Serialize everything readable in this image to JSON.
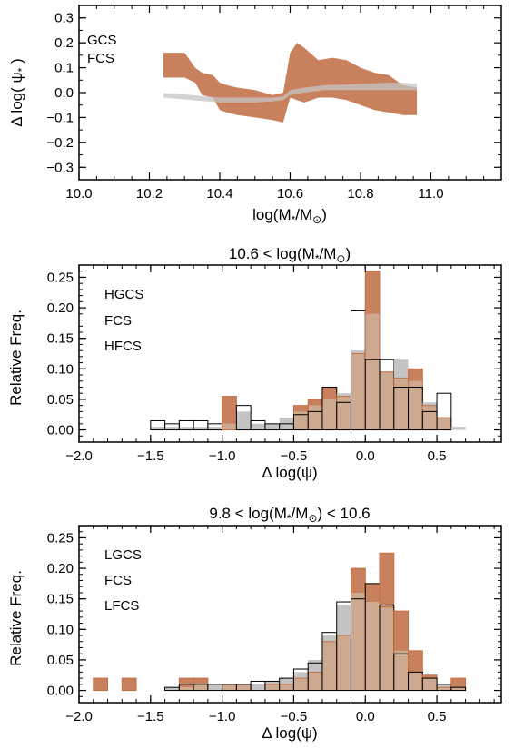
{
  "colors": {
    "gcs": "#c2704a",
    "gcs_fill": "#c9805c",
    "fcs": "#8f8f99",
    "fcs_fill": "#c4c4c4",
    "overlap_fill": "#cda98f",
    "black": "#000000"
  },
  "chart_data": [
    {
      "id": "top",
      "type": "area",
      "title": "",
      "xlabel": "log(M*/M⊙)",
      "ylabel": "Δ log( ψ* )",
      "xlim": [
        10.0,
        11.2
      ],
      "ylim": [
        -0.35,
        0.35
      ],
      "xticks": [
        10.0,
        10.2,
        10.4,
        10.6,
        10.8,
        11.0
      ],
      "xtick_labels": [
        "10.0",
        "10.2",
        "10.4",
        "10.6",
        "10.8",
        "11.0"
      ],
      "yticks": [
        0.3,
        0.2,
        0.1,
        0.0,
        -0.1,
        -0.2,
        -0.3
      ],
      "ytick_labels": [
        "0.3",
        "0.2",
        "0.1",
        "0.0",
        "−0.1",
        "−0.2",
        "−0.3"
      ],
      "legend": [
        {
          "label": "GCS",
          "color": "#c2704a"
        },
        {
          "label": "FCS",
          "color": "#8f8f99"
        }
      ],
      "legend_position": "top-left",
      "series": [
        {
          "label": "GCS",
          "x": [
            10.24,
            10.3,
            10.33,
            10.35,
            10.38,
            10.4,
            10.42,
            10.45,
            10.5,
            10.55,
            10.58,
            10.6,
            10.62,
            10.64,
            10.68,
            10.72,
            10.76,
            10.8,
            10.84,
            10.88,
            10.92,
            10.96
          ],
          "upper": [
            0.16,
            0.16,
            0.1,
            0.08,
            0.07,
            0.04,
            0.03,
            0.02,
            0.01,
            -0.01,
            0.0,
            0.16,
            0.2,
            0.18,
            0.13,
            0.14,
            0.13,
            0.1,
            0.08,
            0.07,
            0.03,
            0.02
          ],
          "lower": [
            0.06,
            0.06,
            0.04,
            -0.01,
            -0.02,
            -0.07,
            -0.08,
            -0.09,
            -0.1,
            -0.11,
            -0.12,
            -0.02,
            -0.03,
            -0.04,
            -0.02,
            -0.02,
            -0.03,
            -0.05,
            -0.07,
            -0.08,
            -0.09,
            -0.09
          ]
        },
        {
          "label": "FCS",
          "x": [
            10.24,
            10.28,
            10.32,
            10.4,
            10.5,
            10.55,
            10.58,
            10.6,
            10.64,
            10.7,
            10.8,
            10.88,
            10.92,
            10.96
          ],
          "upper": [
            -0.003,
            -0.005,
            -0.01,
            -0.02,
            -0.02,
            -0.02,
            -0.015,
            0.01,
            0.02,
            0.03,
            0.035,
            0.04,
            0.04,
            0.035
          ],
          "lower": [
            -0.02,
            -0.025,
            -0.03,
            -0.04,
            -0.04,
            -0.035,
            -0.03,
            -0.01,
            0.0,
            0.01,
            0.01,
            0.01,
            0.01,
            0.01
          ]
        }
      ]
    },
    {
      "id": "mid",
      "type": "bar",
      "title": "10.6 < log(M*/M⊙)",
      "xlabel": "Δ log(ψ)",
      "ylabel": "Relative Freq.",
      "xlim": [
        -2.0,
        0.95
      ],
      "ylim": [
        -0.02,
        0.27
      ],
      "xticks": [
        -2.0,
        -1.5,
        -1.0,
        -0.5,
        0.0,
        0.5
      ],
      "xtick_labels": [
        "−2.0",
        "−1.5",
        "−1.0",
        "−0.5",
        "0.0",
        "0.5"
      ],
      "yticks": [
        0.0,
        0.05,
        0.1,
        0.15,
        0.2,
        0.25
      ],
      "ytick_labels": [
        "0.00",
        "0.05",
        "0.10",
        "0.15",
        "0.20",
        "0.25"
      ],
      "legend": [
        {
          "label": "HGCS",
          "color": "#c2704a"
        },
        {
          "label": "FCS",
          "color": "#8f8f99"
        },
        {
          "label": "HFCS",
          "color": "#000000"
        }
      ],
      "legend_position": "top-left",
      "bin_width": 0.1,
      "bin_left": [
        -1.5,
        -1.4,
        -1.3,
        -1.2,
        -1.1,
        -1.0,
        -0.9,
        -0.8,
        -0.7,
        -0.6,
        -0.5,
        -0.4,
        -0.3,
        -0.2,
        -0.1,
        0.0,
        0.1,
        0.2,
        0.3,
        0.4,
        0.5,
        0.6
      ],
      "series": [
        {
          "label": "HGCS",
          "values": [
            0.0,
            0.0,
            0.0,
            0.0,
            0.0,
            0.055,
            0.0,
            0.0,
            0.0,
            0.0,
            0.04,
            0.05,
            0.07,
            0.055,
            0.125,
            0.26,
            0.095,
            0.085,
            0.1,
            0.04,
            0.02,
            0.0
          ]
        },
        {
          "label": "FCS",
          "values": [
            0.005,
            0.005,
            0.005,
            0.005,
            0.005,
            0.01,
            0.03,
            0.01,
            0.01,
            0.02,
            0.03,
            0.04,
            0.05,
            0.06,
            0.13,
            0.19,
            0.095,
            0.115,
            0.08,
            0.045,
            0.02,
            0.005
          ]
        },
        {
          "label": "HFCS",
          "values": [
            0.015,
            0.01,
            0.015,
            0.015,
            0.01,
            0.0,
            0.04,
            0.015,
            0.01,
            0.01,
            0.025,
            0.03,
            0.07,
            0.045,
            0.195,
            0.115,
            0.115,
            0.07,
            0.07,
            0.03,
            0.06,
            0.0
          ]
        }
      ]
    },
    {
      "id": "bot",
      "type": "bar",
      "title": "9.8 < log(M*/M⊙) < 10.6",
      "xlabel": "Δ log(ψ)",
      "ylabel": "Relative Freq.",
      "xlim": [
        -2.0,
        0.95
      ],
      "ylim": [
        -0.02,
        0.27
      ],
      "xticks": [
        -2.0,
        -1.5,
        -1.0,
        -0.5,
        0.0,
        0.5
      ],
      "xtick_labels": [
        "−2.0",
        "−1.5",
        "−1.0",
        "−0.5",
        "0.0",
        "0.5"
      ],
      "yticks": [
        0.0,
        0.05,
        0.1,
        0.15,
        0.2,
        0.25
      ],
      "ytick_labels": [
        "0.00",
        "0.05",
        "0.10",
        "0.15",
        "0.20",
        "0.25"
      ],
      "legend": [
        {
          "label": "LGCS",
          "color": "#c2704a"
        },
        {
          "label": "FCS",
          "color": "#8f8f99"
        },
        {
          "label": "LFCS",
          "color": "#000000"
        }
      ],
      "legend_position": "top-left",
      "bin_width": 0.1,
      "bin_left": [
        -1.9,
        -1.8,
        -1.7,
        -1.6,
        -1.5,
        -1.4,
        -1.3,
        -1.2,
        -1.1,
        -1.0,
        -0.9,
        -0.8,
        -0.7,
        -0.6,
        -0.5,
        -0.4,
        -0.3,
        -0.2,
        -0.1,
        0.0,
        0.1,
        0.2,
        0.3,
        0.4,
        0.5,
        0.6
      ],
      "series": [
        {
          "label": "LGCS",
          "values": [
            0.02,
            0.0,
            0.02,
            0.0,
            0.0,
            0.0,
            0.02,
            0.02,
            0.0,
            0.01,
            0.01,
            0.0,
            0.01,
            0.01,
            0.02,
            0.03,
            0.08,
            0.09,
            0.2,
            0.175,
            0.225,
            0.13,
            0.065,
            0.025,
            0.005,
            0.02
          ]
        },
        {
          "label": "FCS",
          "values": [
            0.0,
            0.0,
            0.0,
            0.0,
            0.0,
            0.005,
            0.005,
            0.01,
            0.01,
            0.01,
            0.01,
            0.01,
            0.015,
            0.02,
            0.03,
            0.05,
            0.09,
            0.14,
            0.16,
            0.145,
            0.135,
            0.065,
            0.03,
            0.02,
            0.01,
            0.005
          ]
        },
        {
          "label": "LFCS",
          "values": [
            0.0,
            0.0,
            0.0,
            0.0,
            0.0,
            0.005,
            0.01,
            0.01,
            0.01,
            0.01,
            0.01,
            0.015,
            0.015,
            0.02,
            0.035,
            0.045,
            0.095,
            0.145,
            0.15,
            0.175,
            0.14,
            0.06,
            0.03,
            0.02,
            0.01,
            0.005
          ]
        }
      ]
    }
  ]
}
